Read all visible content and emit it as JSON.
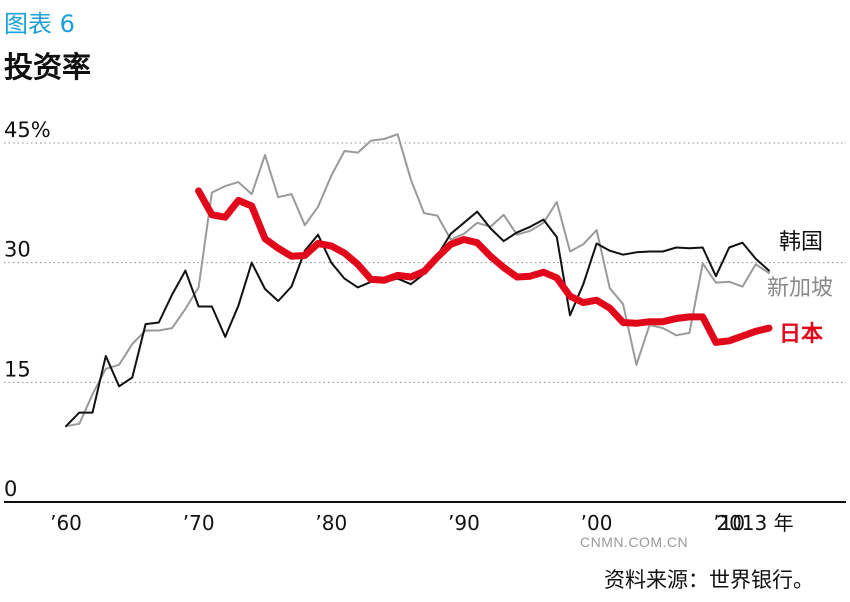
{
  "figure": {
    "label": "图表 6",
    "title": "投资率",
    "watermark": "CNMN.COM.CN",
    "source": "资料来源：世界银行。"
  },
  "chart_data": {
    "type": "line",
    "title": "投资率",
    "xlabel": "",
    "ylabel": "",
    "xlim": [
      1960,
      2014
    ],
    "ylim": [
      0,
      45
    ],
    "grid": true,
    "y_ticks": [
      {
        "value": 0,
        "label": "0"
      },
      {
        "value": 15,
        "label": "15"
      },
      {
        "value": 30,
        "label": "30"
      },
      {
        "value": 45,
        "label": "45%"
      }
    ],
    "x_ticks": [
      {
        "value": 1960,
        "label": "’60"
      },
      {
        "value": 1970,
        "label": "’70"
      },
      {
        "value": 1980,
        "label": "’80"
      },
      {
        "value": 1990,
        "label": "’90"
      },
      {
        "value": 2000,
        "label": "’00"
      },
      {
        "value": 2010,
        "label": "’10"
      },
      {
        "value": 2013,
        "label": "2013 年"
      }
    ],
    "series": [
      {
        "name": "新加坡",
        "color": "#9a9a9a",
        "width": 2,
        "x": [
          1960,
          1961,
          1962,
          1963,
          1964,
          1965,
          1966,
          1967,
          1968,
          1969,
          1970,
          1971,
          1972,
          1973,
          1974,
          1975,
          1976,
          1977,
          1978,
          1979,
          1980,
          1981,
          1982,
          1983,
          1984,
          1985,
          1986,
          1987,
          1988,
          1989,
          1990,
          1991,
          1992,
          1993,
          1994,
          1995,
          1996,
          1997,
          1998,
          1999,
          2000,
          2001,
          2002,
          2003,
          2004,
          2005,
          2006,
          2007,
          2008,
          2009,
          2010,
          2011,
          2012,
          2013
        ],
        "y": [
          9.5,
          9.8,
          13.5,
          16.7,
          17.2,
          19.8,
          21.5,
          21.5,
          21.8,
          24.2,
          26.9,
          38.8,
          39.6,
          40.1,
          38.6,
          43.5,
          38.2,
          38.6,
          34.7,
          37.0,
          40.9,
          44.0,
          43.8,
          45.3,
          45.5,
          46.1,
          40.4,
          36.2,
          35.9,
          32.9,
          33.6,
          35.0,
          34.5,
          36.0,
          33.5,
          34.0,
          35.0,
          37.6,
          31.4,
          32.3,
          34.1,
          26.8,
          24.8,
          17.2,
          22.2,
          21.8,
          20.9,
          21.2,
          29.9,
          27.5,
          27.6,
          27.0,
          29.8,
          28.7
        ]
      },
      {
        "name": "韩国",
        "color": "#111111",
        "width": 2,
        "x": [
          1960,
          1961,
          1962,
          1963,
          1964,
          1965,
          1966,
          1967,
          1968,
          1969,
          1970,
          1971,
          1972,
          1973,
          1974,
          1975,
          1976,
          1977,
          1978,
          1979,
          1980,
          1981,
          1982,
          1983,
          1984,
          1985,
          1986,
          1987,
          1988,
          1989,
          1990,
          1991,
          1992,
          1993,
          1994,
          1995,
          1996,
          1997,
          1998,
          1999,
          2000,
          2001,
          2002,
          2003,
          2004,
          2005,
          2006,
          2007,
          2008,
          2009,
          2010,
          2011,
          2012,
          2013
        ],
        "y": [
          9.5,
          11.2,
          11.2,
          18.3,
          14.5,
          15.6,
          22.3,
          22.5,
          26.0,
          29.0,
          24.5,
          24.5,
          20.7,
          24.6,
          30.0,
          26.7,
          25.2,
          27.0,
          31.5,
          33.5,
          30.0,
          28.0,
          26.9,
          27.6,
          27.6,
          28.0,
          27.3,
          28.6,
          30.9,
          33.6,
          35.0,
          36.4,
          34.3,
          32.7,
          33.8,
          34.5,
          35.4,
          33.2,
          23.4,
          27.3,
          32.4,
          31.5,
          31.0,
          31.3,
          31.4,
          31.4,
          31.9,
          31.8,
          31.9,
          28.3,
          31.9,
          32.5,
          30.5,
          29.0
        ]
      },
      {
        "name": "日本",
        "color": "#e2081c",
        "width": 7,
        "x": [
          1970,
          1971,
          1972,
          1973,
          1974,
          1975,
          1976,
          1977,
          1978,
          1979,
          1980,
          1981,
          1982,
          1983,
          1984,
          1985,
          1986,
          1987,
          1988,
          1989,
          1990,
          1991,
          1992,
          1993,
          1994,
          1995,
          1996,
          1997,
          1998,
          1999,
          2000,
          2001,
          2002,
          2003,
          2004,
          2005,
          2006,
          2007,
          2008,
          2009,
          2010,
          2011,
          2012,
          2013
        ],
        "y": [
          39.0,
          36.0,
          35.7,
          37.8,
          37.1,
          33.0,
          31.8,
          30.8,
          30.9,
          32.4,
          32.1,
          31.2,
          29.8,
          27.9,
          27.8,
          28.4,
          28.2,
          28.9,
          30.7,
          32.3,
          32.9,
          32.5,
          30.8,
          29.4,
          28.2,
          28.3,
          28.8,
          28.1,
          25.8,
          25.0,
          25.3,
          24.3,
          22.5,
          22.4,
          22.6,
          22.6,
          23.0,
          23.2,
          23.2,
          20.0,
          20.2,
          20.8,
          21.4,
          21.8
        ]
      }
    ],
    "series_labels": [
      {
        "text": "韩国",
        "color": "#111111"
      },
      {
        "text": "新加坡",
        "color": "#8a8a8a"
      },
      {
        "text": "日本",
        "color": "#e2081c",
        "bold": true
      }
    ]
  }
}
